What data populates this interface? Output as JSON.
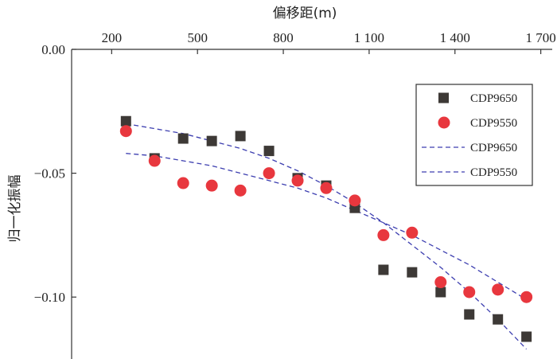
{
  "chart_data": {
    "type": "scatter",
    "xlabel": "偏移距(m)",
    "ylabel": "归一化振幅",
    "x_axis_position": "top",
    "xlim": [
      60,
      1740
    ],
    "ylim": [
      -0.125,
      0.0
    ],
    "x_ticks": [
      200,
      500,
      800,
      1100,
      1400,
      1700
    ],
    "x_tick_labels": [
      "200",
      "500",
      "800",
      "1 100",
      "1 400",
      "1 700"
    ],
    "y_ticks": [
      0.0,
      -0.05,
      -0.1
    ],
    "y_tick_labels": [
      "0.00",
      "−0.05",
      "−0.10"
    ],
    "grid": false,
    "legend_position": "top-right",
    "series": [
      {
        "name": "CDP9650",
        "kind": "points",
        "marker": "square",
        "color": "#3d3936",
        "x": [
          250,
          350,
          450,
          550,
          650,
          750,
          850,
          950,
          1050,
          1150,
          1250,
          1350,
          1450,
          1550,
          1650
        ],
        "y": [
          -0.029,
          -0.044,
          -0.036,
          -0.037,
          -0.035,
          -0.041,
          -0.052,
          -0.055,
          -0.064,
          -0.089,
          -0.09,
          -0.098,
          -0.107,
          -0.109,
          -0.116
        ]
      },
      {
        "name": "CDP9550",
        "kind": "points",
        "marker": "circle",
        "color": "#e8373e",
        "x": [
          250,
          350,
          450,
          550,
          650,
          750,
          850,
          950,
          1050,
          1150,
          1250,
          1350,
          1450,
          1550,
          1650
        ],
        "y": [
          -0.033,
          -0.045,
          -0.054,
          -0.055,
          -0.057,
          -0.05,
          -0.053,
          -0.056,
          -0.061,
          -0.075,
          -0.074,
          -0.094,
          -0.098,
          -0.097,
          -0.1
        ]
      },
      {
        "name": "CDP9650",
        "kind": "trend",
        "style": "dashed",
        "color": "#3d3fb0",
        "x": [
          250,
          350,
          450,
          550,
          650,
          750,
          850,
          950,
          1050,
          1150,
          1250,
          1350,
          1450,
          1550,
          1650
        ],
        "y": [
          -0.03,
          -0.032,
          -0.034,
          -0.037,
          -0.04,
          -0.044,
          -0.049,
          -0.055,
          -0.062,
          -0.07,
          -0.079,
          -0.088,
          -0.098,
          -0.109,
          -0.121
        ]
      },
      {
        "name": "CDP9550",
        "kind": "trend",
        "style": "dashed",
        "color": "#3d3fb0",
        "x": [
          250,
          350,
          450,
          550,
          650,
          750,
          850,
          950,
          1050,
          1150,
          1250,
          1350,
          1450,
          1550,
          1650
        ],
        "y": [
          -0.042,
          -0.043,
          -0.045,
          -0.047,
          -0.05,
          -0.053,
          -0.056,
          -0.06,
          -0.065,
          -0.07,
          -0.075,
          -0.081,
          -0.087,
          -0.094,
          -0.101
        ]
      }
    ]
  }
}
